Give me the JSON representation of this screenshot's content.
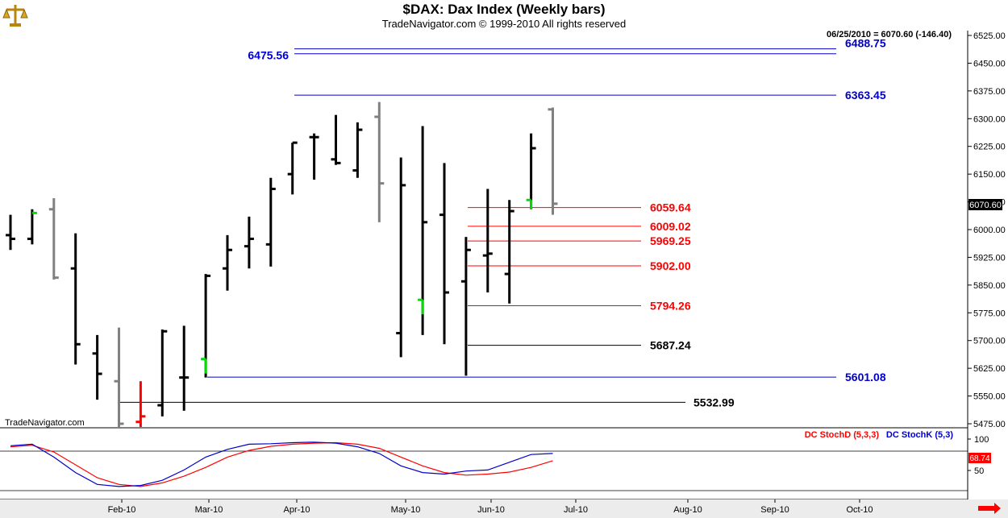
{
  "header": {
    "title": "$DAX:  Dax Index  (Weekly bars)",
    "subtitle": "TradeNavigator.com © 1999-2010 All rights reserved"
  },
  "quote_readout": "06/25/2010 = 6070.60 (-146.40)",
  "watermark": "TradeNavigator.com",
  "chart_data": {
    "type": "bar",
    "subtype": "ohlc",
    "title": "$DAX:  Dax Index  (Weekly bars)",
    "ylim": [
      5460,
      6540
    ],
    "y_ticks": [
      "6525.00",
      "6450.00",
      "6375.00",
      "6300.00",
      "6225.00",
      "6150.00",
      "6075.00",
      "6000.00",
      "5925.00",
      "5850.00",
      "5775.00",
      "5700.00",
      "5625.00",
      "5550.00",
      "5475.00"
    ],
    "x_ticks": [
      "Feb-10",
      "Mar-10",
      "Apr-10",
      "May-10",
      "Jun-10",
      "Jul-10",
      "Aug-10",
      "Sep-10",
      "Oct-10"
    ],
    "last_price": "6070.60",
    "colors": {
      "normal": "#000000",
      "gray": "#808080",
      "red": "#ff0000",
      "green": "#00dd00",
      "blue_level": "#0000cc",
      "red_level": "#ff0000",
      "black_level": "#000000"
    },
    "bars": [
      {
        "o": 5985,
        "h": 6040,
        "l": 5945,
        "c": 5975,
        "color": "normal"
      },
      {
        "o": 5975,
        "h": 6055,
        "l": 5960,
        "c": 6045,
        "color": "normal",
        "close_color": "green"
      },
      {
        "o": 6055,
        "h": 6085,
        "l": 5865,
        "c": 5870,
        "color": "gray"
      },
      {
        "o": 5895,
        "h": 5990,
        "l": 5635,
        "c": 5690,
        "color": "normal"
      },
      {
        "o": 5665,
        "h": 5715,
        "l": 5540,
        "c": 5610,
        "color": "normal"
      },
      {
        "o": 5590,
        "h": 5735,
        "l": 5460,
        "c": 5475,
        "color": "gray"
      },
      {
        "o": 5480,
        "h": 5590,
        "l": 5460,
        "c": 5495,
        "color": "red"
      },
      {
        "o": 5525,
        "h": 5730,
        "l": 5495,
        "c": 5725,
        "color": "normal"
      },
      {
        "o": 5600,
        "h": 5740,
        "l": 5510,
        "c": 5600,
        "color": "normal"
      },
      {
        "o": 5650,
        "h": 5880,
        "l": 5600,
        "c": 5875,
        "color": "normal",
        "open_color": "green"
      },
      {
        "o": 5895,
        "h": 5985,
        "l": 5835,
        "c": 5945,
        "color": "normal"
      },
      {
        "o": 5955,
        "h": 6035,
        "l": 5895,
        "c": 5975,
        "color": "normal"
      },
      {
        "o": 5960,
        "h": 6140,
        "l": 5900,
        "c": 6110,
        "color": "normal"
      },
      {
        "o": 6150,
        "h": 6235,
        "l": 6095,
        "c": 6235,
        "color": "normal"
      },
      {
        "o": 6250,
        "h": 6260,
        "l": 6135,
        "c": 6250,
        "color": "normal"
      },
      {
        "o": 6190,
        "h": 6310,
        "l": 6175,
        "c": 6180,
        "color": "normal"
      },
      {
        "o": 6160,
        "h": 6290,
        "l": 6140,
        "c": 6270,
        "color": "normal"
      },
      {
        "o": 6305,
        "h": 6345,
        "l": 6020,
        "c": 6125,
        "color": "gray"
      },
      {
        "o": 5720,
        "h": 6195,
        "l": 5655,
        "c": 6120,
        "color": "normal"
      },
      {
        "o": 5810,
        "h": 6280,
        "l": 5715,
        "c": 6020,
        "color": "normal",
        "open_color": "green"
      },
      {
        "o": 6040,
        "h": 6180,
        "l": 5690,
        "c": 5830,
        "color": "normal"
      },
      {
        "o": 5860,
        "h": 5980,
        "l": 5605,
        "c": 5945,
        "color": "normal"
      },
      {
        "o": 5930,
        "h": 6110,
        "l": 5830,
        "c": 5935,
        "color": "normal"
      },
      {
        "o": 5880,
        "h": 6080,
        "l": 5800,
        "c": 6050,
        "color": "normal"
      },
      {
        "o": 6080,
        "h": 6260,
        "l": 6055,
        "c": 6220,
        "color": "normal",
        "open_color": "green"
      },
      {
        "o": 6325,
        "h": 6330,
        "l": 6040,
        "c": 6070,
        "color": "gray"
      }
    ],
    "levels": [
      {
        "value": 6488.75,
        "label": "6488.75",
        "color": "#0000cc",
        "label_side": "right"
      },
      {
        "value": 6475.56,
        "label": "6475.56",
        "color": "#0000cc",
        "label_side": "left"
      },
      {
        "value": 6363.45,
        "label": "6363.45",
        "color": "#0000cc",
        "label_side": "right"
      },
      {
        "value": 6059.64,
        "label": "6059.64",
        "color": "#ff0000",
        "label_side": "mid"
      },
      {
        "value": 6009.02,
        "label": "6009.02",
        "color": "#ff0000",
        "label_side": "mid"
      },
      {
        "value": 5969.25,
        "label": "5969.25",
        "color": "#ff0000",
        "label_side": "mid"
      },
      {
        "value": 5902.0,
        "label": "5902.00",
        "color": "#ff0000",
        "label_side": "mid"
      },
      {
        "value": 5794.26,
        "label": "5794.26",
        "color": "#ff0000",
        "label_side": "mid"
      },
      {
        "value": 5687.24,
        "label": "5687.24",
        "color": "#000000",
        "label_side": "mid"
      },
      {
        "value": 5601.08,
        "label": "5601.08",
        "color": "#0000cc",
        "label_side": "right"
      },
      {
        "value": 5532.99,
        "label": "5532.99",
        "color": "#000000",
        "label_side": "mid2"
      }
    ],
    "stochastic": {
      "legend_d": "DC StochD (5,3,3)",
      "legend_k": "DC StochK (5,3)",
      "ticks": [
        "100",
        "50"
      ],
      "last_value": "68.74",
      "ylim": [
        0,
        100
      ],
      "reference_lines": [
        80,
        20
      ],
      "stoch_d": [
        85,
        88,
        75,
        50,
        25,
        12,
        8,
        15,
        28,
        45,
        65,
        78,
        86,
        90,
        92,
        93,
        90,
        82,
        65,
        48,
        35,
        30,
        32,
        36,
        45,
        58
      ],
      "stoch_k": [
        87,
        90,
        65,
        35,
        12,
        8,
        10,
        20,
        40,
        65,
        80,
        90,
        91,
        93,
        94,
        92,
        85,
        72,
        48,
        35,
        32,
        38,
        40,
        55,
        70,
        72
      ]
    }
  }
}
